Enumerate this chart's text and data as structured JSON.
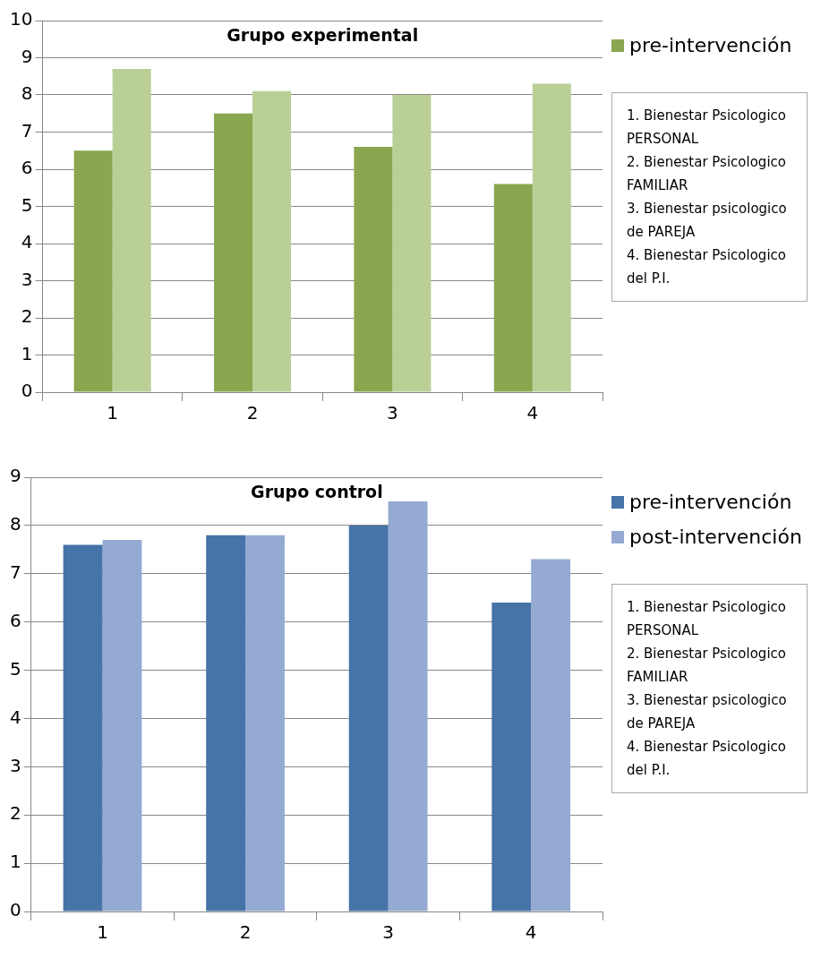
{
  "chart_data": [
    {
      "type": "bar",
      "title": "Grupo experimental",
      "categories": [
        "1",
        "2",
        "3",
        "4"
      ],
      "series": [
        {
          "name": "pre-intervención",
          "color": "#8aa64f",
          "values": [
            6.5,
            7.5,
            6.6,
            5.6
          ]
        },
        {
          "color": "#bacf96",
          "values": [
            8.7,
            8.1,
            8.0,
            8.3
          ]
        }
      ],
      "ylim": [
        0,
        10
      ],
      "yticks": [
        0,
        1,
        2,
        3,
        4,
        5,
        6,
        7,
        8,
        9,
        10
      ],
      "grid": "y",
      "legend": "right",
      "annotations": [
        "1. Bienestar Psicologico PERSONAL",
        "2. Bienestar Psicologico FAMILIAR",
        "3. Bienestar psicologico de PAREJA",
        "4. Bienestar Psicologico del P.I."
      ]
    },
    {
      "type": "bar",
      "title": "Grupo control",
      "categories": [
        "1",
        "2",
        "3",
        "4"
      ],
      "series": [
        {
          "name": "pre-intervención",
          "color": "#4673a8",
          "values": [
            7.6,
            7.8,
            8.0,
            6.4
          ]
        },
        {
          "name": "post-intervención",
          "color": "#94aad2",
          "values": [
            7.7,
            7.8,
            8.5,
            7.3
          ]
        }
      ],
      "ylim": [
        0,
        9
      ],
      "yticks": [
        0,
        1,
        2,
        3,
        4,
        5,
        6,
        7,
        8,
        9
      ],
      "grid": "y",
      "legend": "right",
      "annotations": [
        "1. Bienestar Psicologico PERSONAL",
        "2. Bienestar Psicologico FAMILIAR",
        "3. Bienestar psicologico de PAREJA",
        "4. Bienestar Psicologico del P.I."
      ]
    }
  ]
}
